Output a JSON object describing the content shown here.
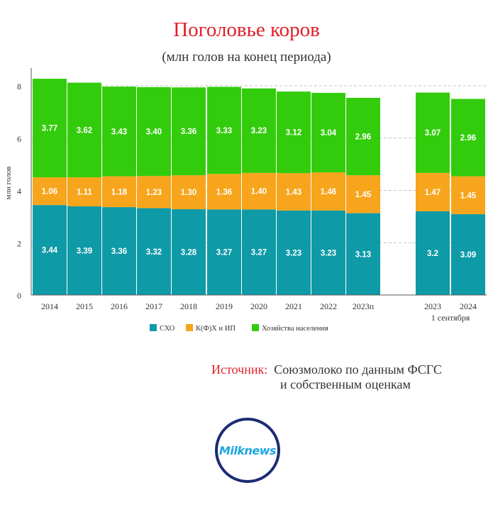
{
  "chart_data": {
    "type": "bar",
    "stacked": true,
    "title": "Поголовье коров",
    "subtitle": "(млн голов на конец периода)",
    "ylabel": "млн голов",
    "ylim": [
      0,
      8
    ],
    "yticks": [
      "0",
      "2",
      "4",
      "6",
      "8"
    ],
    "grid": true,
    "legend_position": "bottom",
    "categories": [
      "2014",
      "2015",
      "2016",
      "2017",
      "2018",
      "2019",
      "2020",
      "2021",
      "2022",
      "2023п",
      "2023",
      "2024"
    ],
    "group_label": "1 сентября",
    "series": [
      {
        "name": "СХО",
        "color": "#0e9aa7",
        "values": [
          3.44,
          3.39,
          3.36,
          3.32,
          3.28,
          3.27,
          3.27,
          3.23,
          3.23,
          3.13,
          3.2,
          3.09
        ],
        "labels": [
          "3.44",
          "3.39",
          "3.36",
          "3.32",
          "3.28",
          "3.27",
          "3.27",
          "3.23",
          "3.23",
          "3.13",
          "3.2",
          "3.09"
        ]
      },
      {
        "name": "К(Ф)Х и ИП",
        "color": "#f7a51c",
        "values": [
          1.06,
          1.11,
          1.18,
          1.23,
          1.3,
          1.36,
          1.4,
          1.43,
          1.46,
          1.45,
          1.47,
          1.45
        ],
        "labels": [
          "1.06",
          "1.11",
          "1.18",
          "1.23",
          "1.30",
          "1.36",
          "1.40",
          "1.43",
          "1.46",
          "1.45",
          "1.47",
          "1.45"
        ]
      },
      {
        "name": "Хозяйства населения",
        "color": "#33cc0c",
        "values": [
          3.77,
          3.62,
          3.43,
          3.4,
          3.36,
          3.33,
          3.23,
          3.12,
          3.04,
          2.96,
          3.07,
          2.96
        ],
        "labels": [
          "3.77",
          "3.62",
          "3.43",
          "3.40",
          "3.36",
          "3.33",
          "3.23",
          "3.12",
          "3.04",
          "2.96",
          "3.07",
          "2.96"
        ]
      }
    ]
  },
  "source": {
    "label": "Источник:",
    "text_line1": "Союзмолоко по данным ФСГС",
    "text_line2": "и собственным оценкам"
  },
  "logo": {
    "text": "Milknews"
  }
}
